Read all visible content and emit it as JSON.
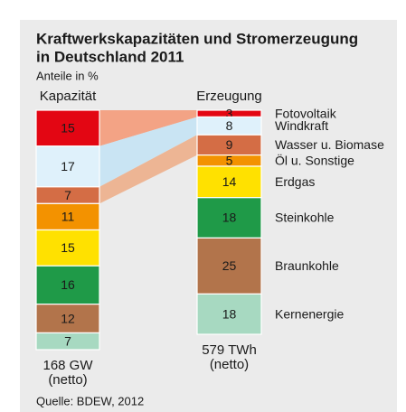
{
  "chart_data": {
    "type": "stacked-column",
    "title": [
      "Kraftwerkskapazitäten und Stromerzeugung",
      "in Deutschland 2011"
    ],
    "subtitle": "Anteile in %",
    "categories": [
      "Kapazität",
      "Erzeugung"
    ],
    "column_notes": [
      [
        "168 GW",
        "(netto)"
      ],
      [
        "579 TWh",
        "(netto)"
      ]
    ],
    "series": [
      {
        "name": "Fotovoltaik",
        "color": "#e30613",
        "values": [
          15,
          3
        ]
      },
      {
        "name": "Windkraft",
        "color": "#dff1fb",
        "values": [
          17,
          8
        ]
      },
      {
        "name": "Wasser u. Biomase",
        "color": "#d46d45",
        "values": [
          7,
          9
        ]
      },
      {
        "name": "Öl u. Sonstige",
        "color": "#f39200",
        "values": [
          11,
          5
        ]
      },
      {
        "name": "Erdgas",
        "color": "#ffe100",
        "values": [
          15,
          14
        ]
      },
      {
        "name": "Steinkohle",
        "color": "#1f9a48",
        "values": [
          16,
          18
        ]
      },
      {
        "name": "Braunkohle",
        "color": "#b2744b",
        "values": [
          12,
          25
        ]
      },
      {
        "name": "Kernenergie",
        "color": "#a7d9c1",
        "values": [
          7,
          18
        ]
      }
    ],
    "source": "Quelle: BDEW, 2012"
  }
}
